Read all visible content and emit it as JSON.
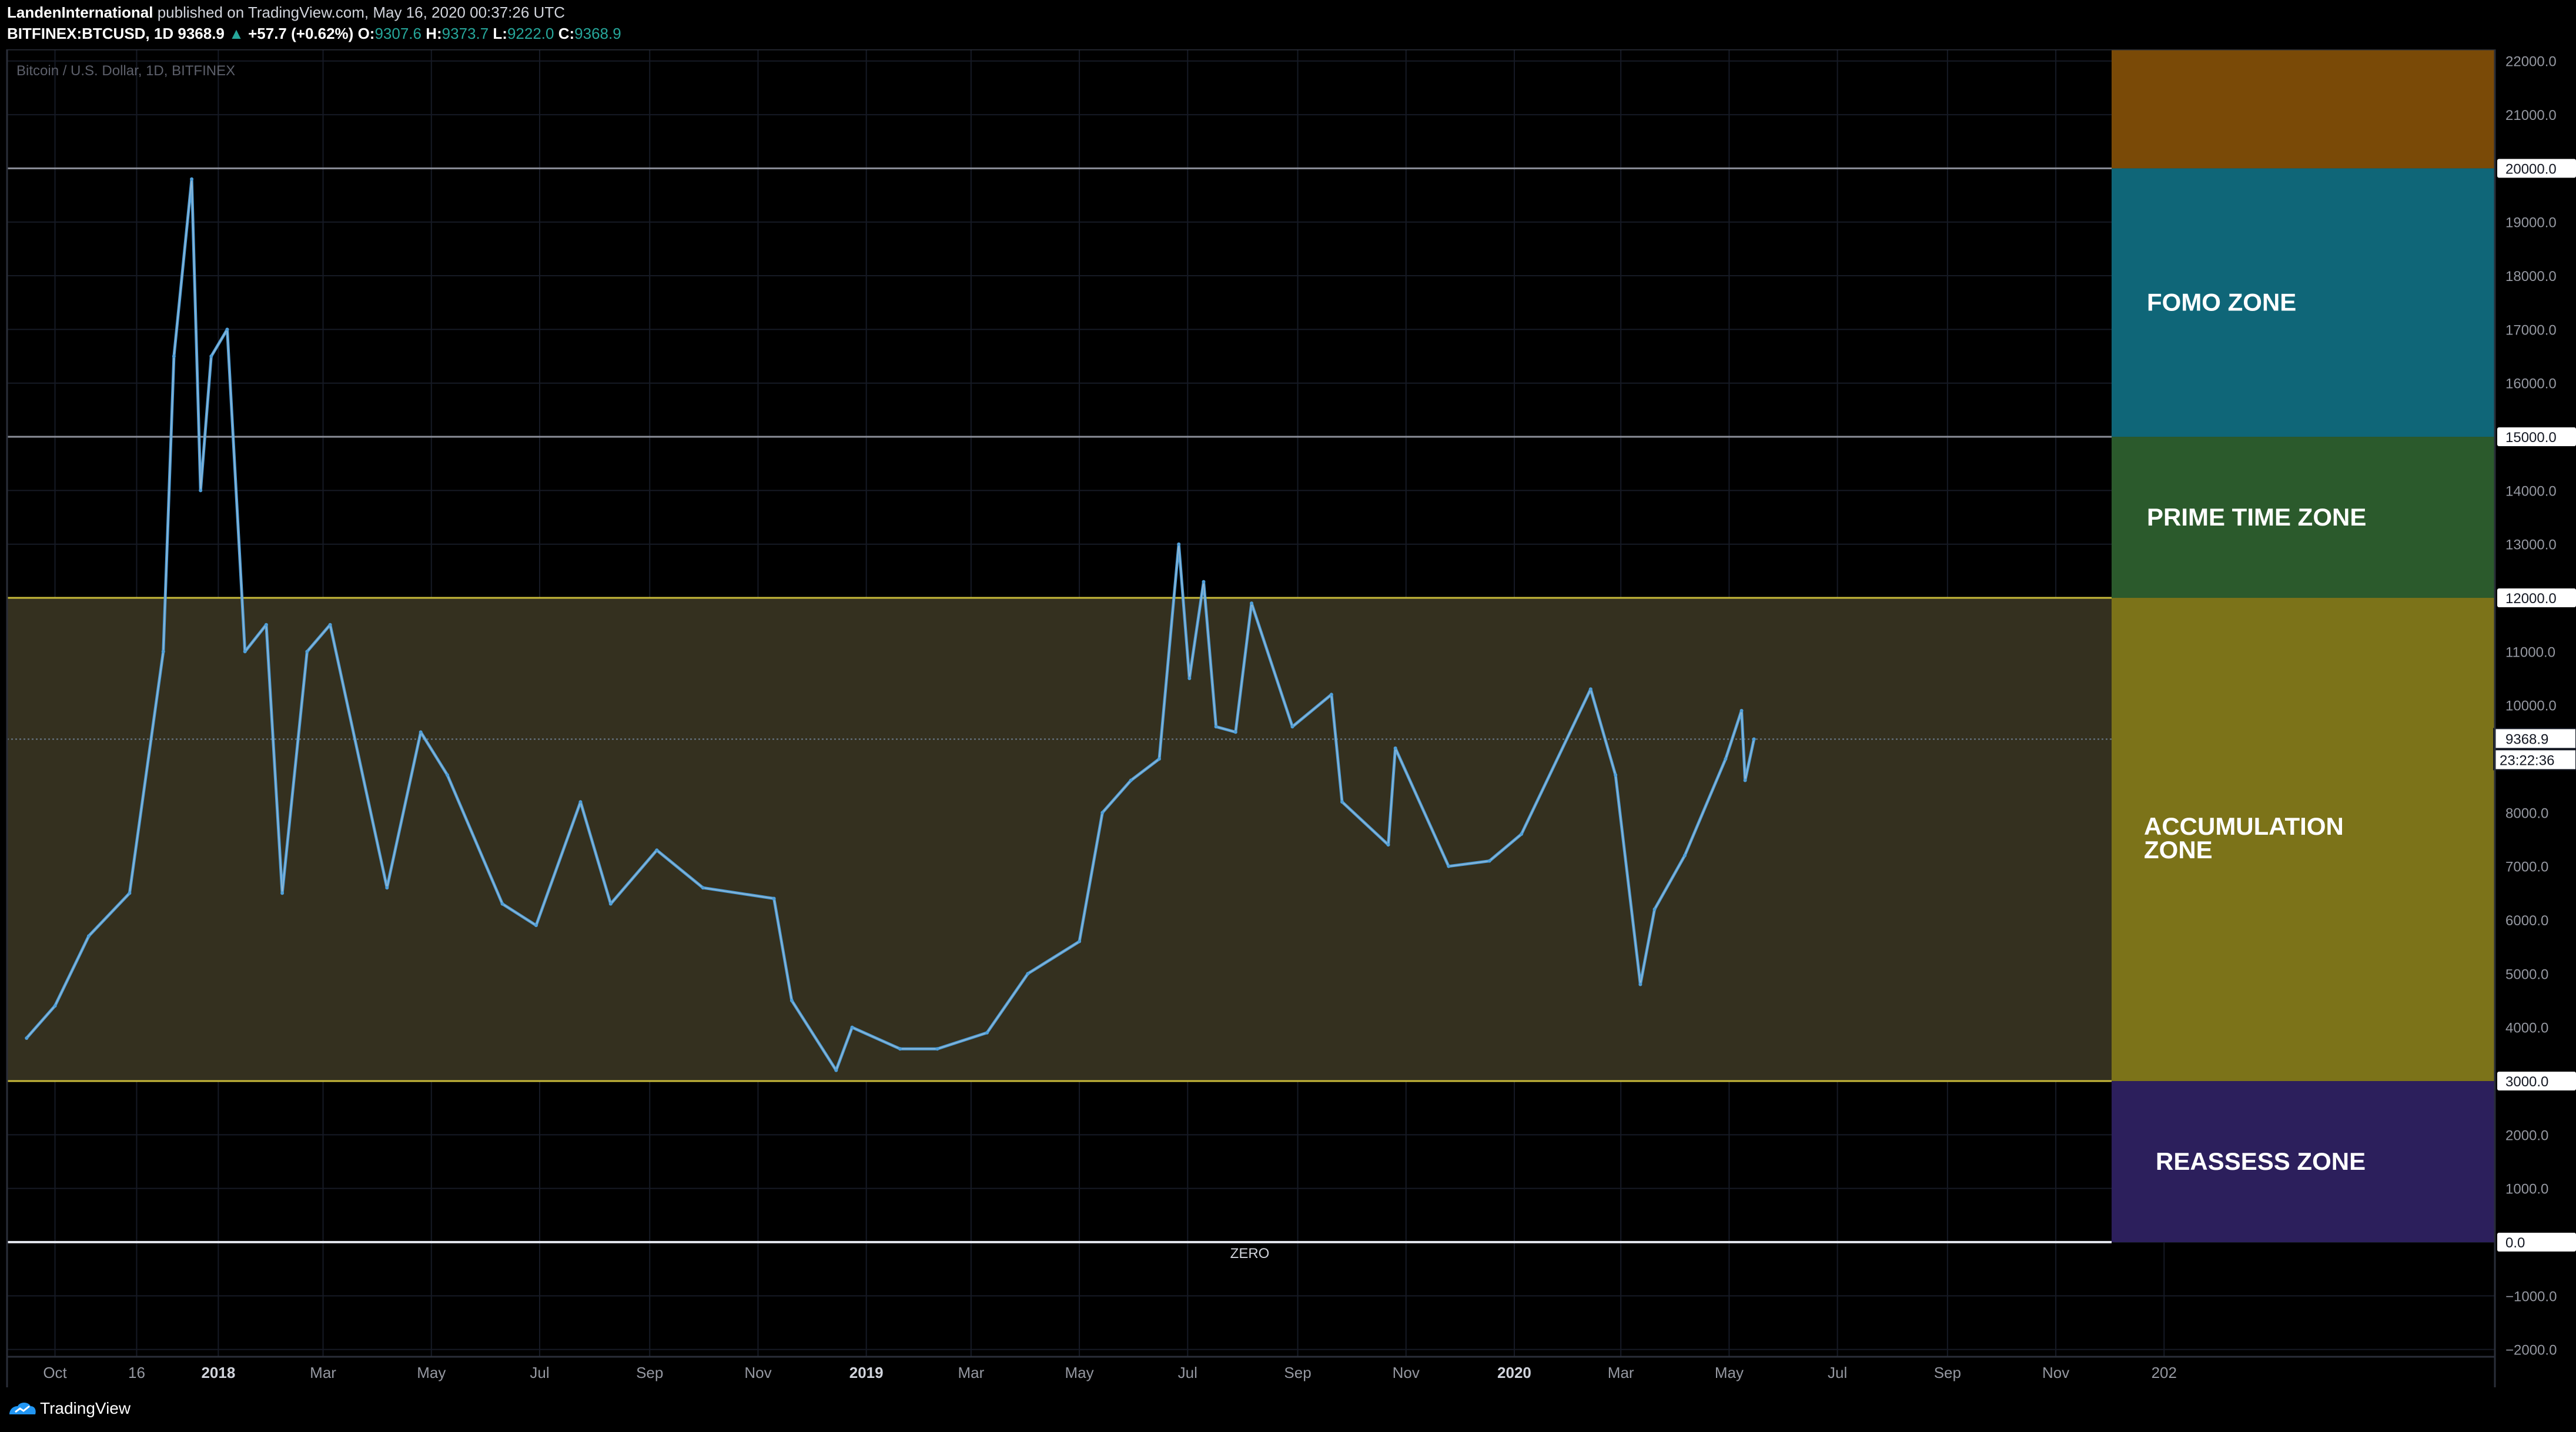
{
  "header": {
    "author": "LandenInternational",
    "published": "published on TradingView.com, May 16, 2020 00:37:26 UTC",
    "symbol": "BITFINEX:BTCUSD, 1D",
    "last": "9368.9",
    "change_arrow": "▲",
    "change": "+57.7 (+0.62%)",
    "o_label": "O:",
    "o_value": "9307.6",
    "h_label": "H:",
    "h_value": "9373.7",
    "l_label": "L:",
    "l_value": "9222.0",
    "c_label": "C:",
    "c_value": "9368.9"
  },
  "footer": {
    "brand": "TradingView",
    "logo_icon": "tradingview-logo-icon"
  },
  "colors": {
    "background": "#000000",
    "price_line": "#4f9fd9",
    "price_line_highlight": "#b9c6d1",
    "fomo": "#0f6678",
    "prime": "#2b5a2c",
    "accumulation": "#7c7319",
    "accumulation_band": "#34301f",
    "reassess": "#2c1f5c",
    "top_zone": "#7a4a07"
  },
  "chart_data": {
    "type": "line",
    "title": "Bitcoin / U.S. Dollar, 1D, BITFINEX",
    "xlabel": "",
    "ylabel": "",
    "x_tick_labels": [
      "Oct",
      "16",
      "2018",
      "Mar",
      "May",
      "Jul",
      "Sep",
      "Nov",
      "2019",
      "Mar",
      "May",
      "Jul",
      "Sep",
      "Nov",
      "2020",
      "Mar",
      "May",
      "Jul",
      "Sep",
      "Nov",
      "202"
    ],
    "y_axis_labels": [
      "22000.0",
      "21000.0",
      "19000.0",
      "18000.0",
      "17000.0",
      "16000.0",
      "14000.0",
      "13000.0",
      "11000.0",
      "10000.0",
      "8000.0",
      "7000.0",
      "6000.0",
      "5000.0",
      "4000.0",
      "2000.0",
      "1000.0",
      "−1000.0",
      "−2000.0"
    ],
    "ylim": [
      -2000,
      22500
    ],
    "grid": true,
    "series": [
      {
        "values_x_dates": [
          "2017-09-15",
          "2017-10-01",
          "2017-10-20",
          "2017-11-12",
          "2017-12-01",
          "2017-12-07",
          "2017-12-17",
          "2017-12-22",
          "2017-12-28",
          "2018-01-06",
          "2018-01-16",
          "2018-01-28",
          "2018-02-06",
          "2018-02-20",
          "2018-03-05",
          "2018-04-06",
          "2018-04-25",
          "2018-05-10",
          "2018-06-10",
          "2018-06-29",
          "2018-07-24",
          "2018-08-10",
          "2018-09-05",
          "2018-10-01",
          "2018-11-10",
          "2018-11-20",
          "2018-12-15",
          "2018-12-24",
          "2019-01-20",
          "2019-02-10",
          "2019-03-10",
          "2019-04-02",
          "2019-05-01",
          "2019-05-14",
          "2019-05-30",
          "2019-06-15",
          "2019-06-26",
          "2019-07-02",
          "2019-07-10",
          "2019-07-17",
          "2019-07-28",
          "2019-08-06",
          "2019-08-29",
          "2019-09-20",
          "2019-09-26",
          "2019-10-22",
          "2019-10-26",
          "2019-11-25",
          "2019-12-18",
          "2020-01-05",
          "2020-02-13",
          "2020-02-27",
          "2020-03-12",
          "2020-03-20",
          "2020-04-06",
          "2020-04-29",
          "2020-05-08",
          "2020-05-10",
          "2020-05-15"
        ],
        "values_y": [
          3800,
          4400,
          5700,
          6500,
          11000,
          16500,
          19800,
          14000,
          16500,
          17000,
          11000,
          11500,
          6500,
          11000,
          11500,
          6600,
          9500,
          8700,
          6300,
          5900,
          8200,
          6300,
          7300,
          6600,
          6400,
          4500,
          3200,
          4000,
          3600,
          3600,
          3900,
          5000,
          5600,
          8000,
          8600,
          9000,
          13000,
          10500,
          12300,
          9600,
          9500,
          11900,
          9600,
          10200,
          8200,
          7400,
          9200,
          7000,
          7100,
          7600,
          10300,
          8700,
          4800,
          6200,
          7200,
          9000,
          9900,
          8600,
          9368.9
        ]
      }
    ],
    "last_price_label": "9368.9",
    "countdown": "23:22:36",
    "zones": [
      {
        "name": "top",
        "label": "",
        "from": 20000,
        "to": 22500,
        "color": "#7a4a07"
      },
      {
        "name": "fomo",
        "label": "FOMO ZONE",
        "from": 15000,
        "to": 20000,
        "color": "#0f6678"
      },
      {
        "name": "prime-time",
        "label": "PRIME TIME ZONE",
        "from": 12000,
        "to": 15000,
        "color": "#2b5a2c"
      },
      {
        "name": "accumulation",
        "label": "ACCUMULATION ZONE",
        "from": 3000,
        "to": 12000,
        "color": "#7c7319"
      },
      {
        "name": "reassess",
        "label": "REASSESS ZONE",
        "from": 0,
        "to": 3000,
        "color": "#2c1f5c"
      }
    ],
    "levels": [
      {
        "value": 20000,
        "label": "20000.0"
      },
      {
        "value": 15000,
        "label": "15000.0"
      },
      {
        "value": 12000,
        "label": "12000.0"
      },
      {
        "value": 3000,
        "label": "3000.0"
      },
      {
        "value": 0,
        "label": "0.0",
        "annotation": "ZERO"
      }
    ]
  }
}
